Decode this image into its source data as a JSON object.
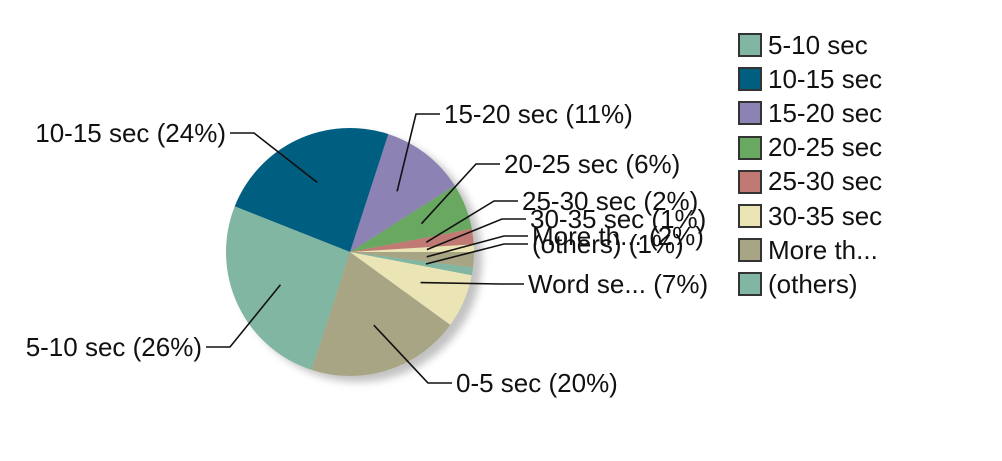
{
  "chart_data": {
    "type": "pie",
    "title": "",
    "slices": [
      {
        "name": "30-35 sec",
        "value": 1,
        "color": "#ebe4b4",
        "label": "30-35 sec (1%)"
      },
      {
        "name": "25-30 sec",
        "value": 2,
        "color": "#c17a73",
        "label": "25-30 sec (2%)"
      },
      {
        "name": "20-25 sec",
        "value": 6,
        "color": "#68a860",
        "label": "20-25 sec (6%)"
      },
      {
        "name": "15-20 sec",
        "value": 11,
        "color": "#8c82b4",
        "label": "15-20 sec (11%)"
      },
      {
        "name": "10-15 sec",
        "value": 24,
        "color": "#005f80",
        "label": "10-15 sec (24%)"
      },
      {
        "name": "5-10 sec",
        "value": 26,
        "color": "#81b6a2",
        "label": "5-10 sec (26%)"
      },
      {
        "name": "0-5 sec",
        "value": 20,
        "color": "#a8a584",
        "label": "0-5 sec (20%)"
      },
      {
        "name": "Word se...",
        "value": 7,
        "color": "#ebe4b4",
        "label": "Word se... (7%)"
      },
      {
        "name": "(others)",
        "value": 1,
        "color": "#81b6a2",
        "label": "(others) (1%)"
      },
      {
        "name": "More th...",
        "value": 2,
        "color": "#a8a584",
        "label": "More th... (2%)"
      }
    ],
    "legend": [
      {
        "label": "5-10 sec",
        "color": "#81b6a2"
      },
      {
        "label": "10-15 sec",
        "color": "#005f80"
      },
      {
        "label": "15-20 sec",
        "color": "#8c82b4"
      },
      {
        "label": "20-25 sec",
        "color": "#68a860"
      },
      {
        "label": "25-30 sec",
        "color": "#c17a73"
      },
      {
        "label": "30-35 sec",
        "color": "#ebe4b4"
      },
      {
        "label": "More th...",
        "color": "#a8a584"
      },
      {
        "label": "(others)",
        "color": "#81b6a2"
      }
    ],
    "legend_position": "right"
  }
}
